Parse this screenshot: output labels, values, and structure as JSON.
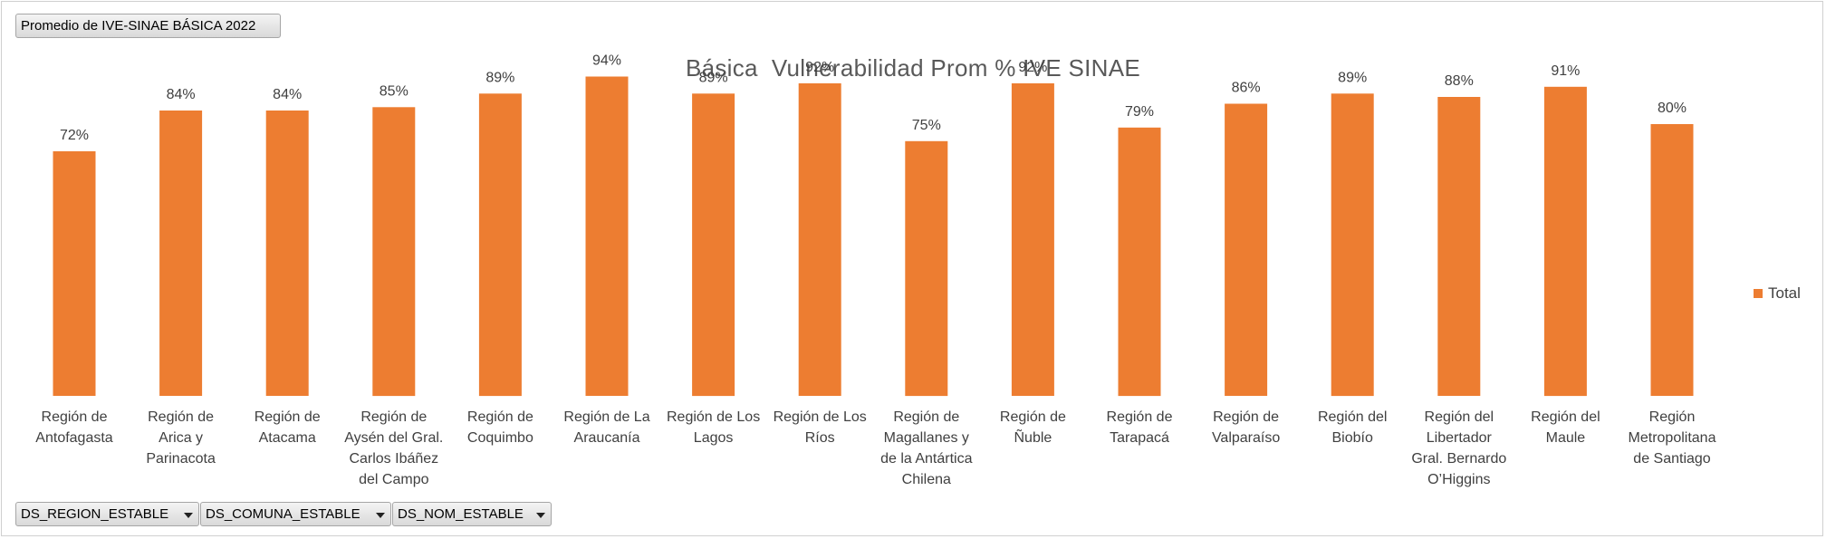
{
  "value_field_button": "Promedio de IVE-SINAE BÁSICA 2022",
  "filter_buttons": [
    "DS_REGION_ESTABLE",
    "DS_COMUNA_ESTABLE",
    "DS_NOM_ESTABLE"
  ],
  "colors": {
    "bar": "#ED7D31",
    "text": "#595959"
  },
  "icons": {
    "filter_dropdown": "chevron-down-icon"
  },
  "chart_data": {
    "type": "bar",
    "title": "Básica  Vulnerabilidad Prom % IVE SINAE",
    "xlabel": "",
    "ylabel": "",
    "ylim": [
      0,
      1
    ],
    "grid": false,
    "legend_position": "right",
    "categories": [
      "Región de Antofagasta",
      "Región de Arica y Parinacota",
      "Región de Atacama",
      "Región de Aysén del Gral. Carlos Ibáñez del Campo",
      "Región de Coquimbo",
      "Región de La Araucanía",
      "Región de Los Lagos",
      "Región de Los Ríos",
      "Región de Magallanes y de la Antártica Chilena",
      "Región de Ñuble",
      "Región de Tarapacá",
      "Región de Valparaíso",
      "Región del Biobío",
      "Región del Libertador Gral. Bernardo O’Higgins",
      "Región del Maule",
      "Región Metropolitana de Santiago"
    ],
    "category_label_lines": [
      [
        "Región de",
        "Antofagasta"
      ],
      [
        "Región de",
        "Arica y",
        "Parinacota"
      ],
      [
        "Región de",
        "Atacama"
      ],
      [
        "Región de",
        "Aysén del Gral.",
        "Carlos Ibáñez",
        "del Campo"
      ],
      [
        "Región de",
        "Coquimbo"
      ],
      [
        "Región de La",
        "Araucanía"
      ],
      [
        "Región de Los",
        "Lagos"
      ],
      [
        "Región de Los",
        "Ríos"
      ],
      [
        "Región de",
        "Magallanes y",
        "de la Antártica",
        "Chilena"
      ],
      [
        "Región de",
        "Ñuble"
      ],
      [
        "Región de",
        "Tarapacá"
      ],
      [
        "Región de",
        "Valparaíso"
      ],
      [
        "Región del",
        "Biobío"
      ],
      [
        "Región del",
        "Libertador",
        "Gral. Bernardo",
        "O’Higgins"
      ],
      [
        "Región del",
        "Maule"
      ],
      [
        "Región",
        "Metropolitana",
        "de Santiago"
      ]
    ],
    "series": [
      {
        "name": "Total",
        "values": [
          0.72,
          0.84,
          0.84,
          0.85,
          0.89,
          0.94,
          0.89,
          0.92,
          0.75,
          0.92,
          0.79,
          0.86,
          0.89,
          0.88,
          0.91,
          0.8
        ],
        "data_labels": [
          "72%",
          "84%",
          "84%",
          "85%",
          "89%",
          "94%",
          "89%",
          "92%",
          "75%",
          "92%",
          "79%",
          "86%",
          "89%",
          "88%",
          "91%",
          "80%"
        ]
      }
    ]
  }
}
